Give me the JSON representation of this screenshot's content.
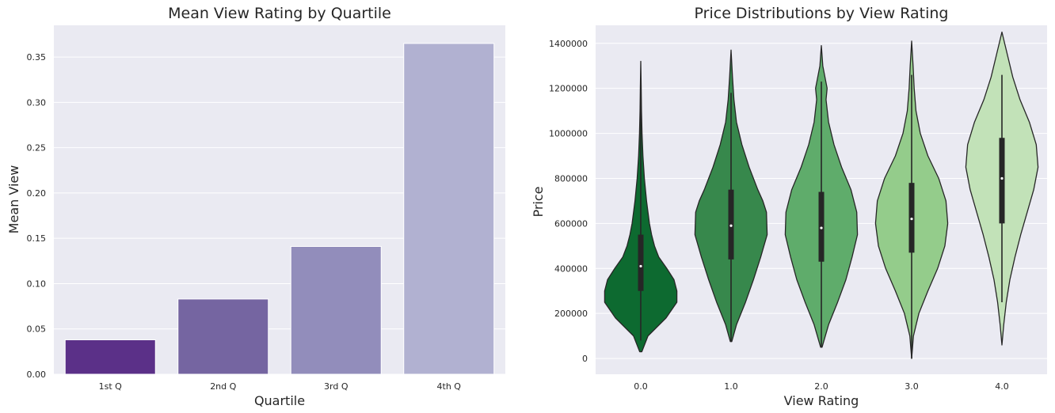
{
  "chart_data": [
    {
      "type": "bar",
      "title": "Mean View Rating by Quartile",
      "xlabel": "Quartile",
      "ylabel": "Mean View",
      "categories": [
        "1st Q",
        "2nd Q",
        "3rd Q",
        "4th Q"
      ],
      "values": [
        0.038,
        0.083,
        0.141,
        0.365
      ],
      "colors": [
        "#5b3088",
        "#7565a1",
        "#928dbb",
        "#b1b1d1"
      ],
      "ylim": [
        0,
        0.385
      ],
      "yticks": [
        0.0,
        0.05,
        0.1,
        0.15,
        0.2,
        0.25,
        0.3,
        0.35
      ],
      "ytick_labels": [
        "0.00",
        "0.05",
        "0.10",
        "0.15",
        "0.20",
        "0.25",
        "0.30",
        "0.35"
      ],
      "background": "#eaeaf2",
      "grid": true
    },
    {
      "type": "violin",
      "title": "Price Distributions by View Rating",
      "xlabel": "View Rating",
      "ylabel": "Price",
      "categories": [
        "0.0",
        "1.0",
        "2.0",
        "3.0",
        "4.0"
      ],
      "colors": [
        "#0d6a30",
        "#37884c",
        "#5fac6b",
        "#94cc8b",
        "#c2e2b8"
      ],
      "ylim": [
        -70000,
        1480000
      ],
      "yticks": [
        0,
        200000,
        400000,
        600000,
        800000,
        1000000,
        1200000,
        1400000
      ],
      "ytick_labels": [
        "0",
        "200000",
        "400000",
        "600000",
        "800000",
        "1000000",
        "1200000",
        "1400000"
      ],
      "background": "#eaeaf2",
      "grid": true,
      "violins": [
        {
          "category": "0.0",
          "min": 30000,
          "whisker_low": 80000,
          "q1": 300000,
          "median": 410000,
          "q3": 550000,
          "whisker_high": 1230000,
          "max": 1320000,
          "density_y": [
            30000,
            100000,
            180000,
            250000,
            300000,
            350000,
            400000,
            450000,
            500000,
            550000,
            600000,
            650000,
            700000,
            800000,
            900000,
            1000000,
            1100000,
            1200000,
            1320000
          ],
          "density_w": [
            0.03,
            0.2,
            0.7,
            1.0,
            1.0,
            0.92,
            0.72,
            0.5,
            0.38,
            0.3,
            0.24,
            0.2,
            0.16,
            0.1,
            0.06,
            0.035,
            0.02,
            0.012,
            0.0
          ]
        },
        {
          "category": "1.0",
          "min": 75000,
          "whisker_low": 75000,
          "q1": 440000,
          "median": 590000,
          "q3": 750000,
          "whisker_high": 1180000,
          "max": 1370000,
          "density_y": [
            75000,
            150000,
            250000,
            350000,
            450000,
            550000,
            650000,
            700000,
            750000,
            850000,
            950000,
            1050000,
            1150000,
            1250000,
            1370000
          ],
          "density_w": [
            0.02,
            0.15,
            0.4,
            0.62,
            0.82,
            1.0,
            0.98,
            0.88,
            0.74,
            0.5,
            0.3,
            0.15,
            0.08,
            0.04,
            0.0
          ]
        },
        {
          "category": "2.0",
          "min": 50000,
          "whisker_low": 50000,
          "q1": 430000,
          "median": 580000,
          "q3": 740000,
          "whisker_high": 1230000,
          "max": 1390000,
          "density_y": [
            50000,
            150000,
            250000,
            350000,
            450000,
            550000,
            650000,
            750000,
            850000,
            950000,
            1050000,
            1150000,
            1200000,
            1250000,
            1300000,
            1390000
          ],
          "density_w": [
            0.02,
            0.2,
            0.45,
            0.68,
            0.85,
            1.0,
            0.98,
            0.82,
            0.56,
            0.35,
            0.2,
            0.13,
            0.16,
            0.1,
            0.04,
            0.0
          ]
        },
        {
          "category": "3.0",
          "min": 0,
          "whisker_low": 0,
          "q1": 470000,
          "median": 620000,
          "q3": 780000,
          "whisker_high": 1260000,
          "max": 1410000,
          "density_y": [
            0,
            100000,
            200000,
            300000,
            400000,
            500000,
            600000,
            700000,
            800000,
            900000,
            1000000,
            1100000,
            1200000,
            1300000,
            1410000
          ],
          "density_w": [
            0.0,
            0.05,
            0.2,
            0.45,
            0.72,
            0.92,
            1.0,
            0.95,
            0.75,
            0.45,
            0.24,
            0.12,
            0.07,
            0.04,
            0.0
          ]
        },
        {
          "category": "4.0",
          "min": 60000,
          "whisker_low": 250000,
          "q1": 600000,
          "median": 800000,
          "q3": 980000,
          "whisker_high": 1260000,
          "max": 1450000,
          "density_y": [
            60000,
            150000,
            250000,
            350000,
            450000,
            550000,
            650000,
            750000,
            850000,
            950000,
            1050000,
            1150000,
            1250000,
            1350000,
            1450000
          ],
          "density_w": [
            0.0,
            0.05,
            0.12,
            0.22,
            0.36,
            0.52,
            0.7,
            0.88,
            1.0,
            0.95,
            0.76,
            0.5,
            0.3,
            0.15,
            0.0
          ]
        }
      ]
    }
  ]
}
